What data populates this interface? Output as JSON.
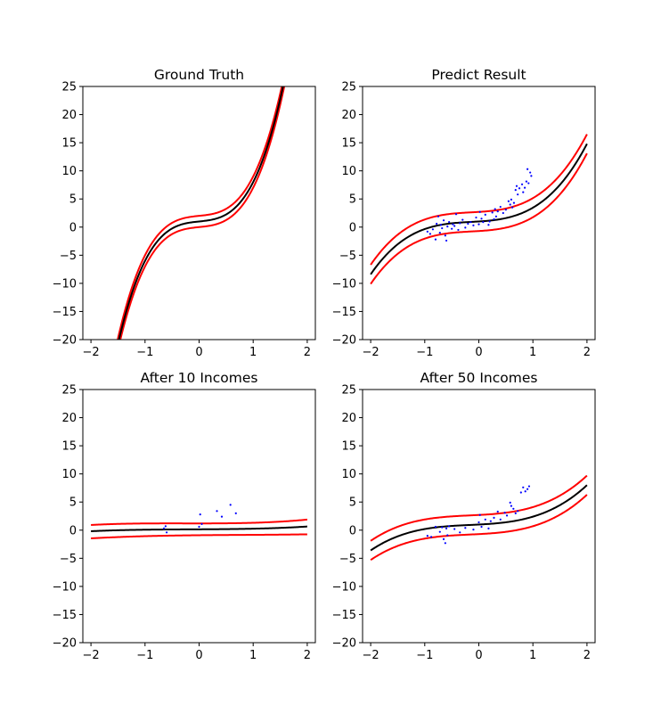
{
  "colors": {
    "mean_line": "#000000",
    "band_lines": "#ff0000",
    "points": "#0000ff",
    "background": "#ffffff"
  },
  "chart_data": [
    {
      "type": "line",
      "title": "Ground Truth",
      "xlim": [
        -2.15,
        2.15
      ],
      "ylim": [
        -20,
        25
      ],
      "xticks": [
        -2,
        -1,
        0,
        1,
        2
      ],
      "yticks": [
        -20,
        -15,
        -10,
        -5,
        0,
        5,
        10,
        15,
        20,
        25
      ],
      "grid": false,
      "legend": "none",
      "curve_model": "y = a*x^3 + b*x^2 + c*x + d, sampled over x in [-2, 2]",
      "mean_poly": [
        6.0,
        0.0,
        1.0,
        1.0
      ],
      "band_offset": 1.0,
      "points": []
    },
    {
      "type": "line",
      "title": "Predict Result",
      "xlim": [
        -2.15,
        2.15
      ],
      "ylim": [
        -20,
        25
      ],
      "xticks": [
        -2,
        -1,
        0,
        1,
        2
      ],
      "yticks": [
        -20,
        -15,
        -10,
        -5,
        0,
        5,
        10,
        15,
        20,
        25
      ],
      "grid": false,
      "legend": "none",
      "mean_poly": [
        1.3,
        0.55,
        0.6,
        1.0
      ],
      "band_offset": 1.7,
      "points": [
        [
          -0.95,
          -0.8
        ],
        [
          -0.9,
          -1.2
        ],
        [
          -0.85,
          -0.4
        ],
        [
          -0.8,
          -2.2
        ],
        [
          -0.78,
          0.6
        ],
        [
          -0.75,
          1.9
        ],
        [
          -0.72,
          -1.0
        ],
        [
          -0.7,
          0.4
        ],
        [
          -0.68,
          -0.2
        ],
        [
          -0.65,
          1.2
        ],
        [
          -0.62,
          -1.5
        ],
        [
          -0.6,
          -2.4
        ],
        [
          -0.58,
          0.1
        ],
        [
          -0.55,
          0.9
        ],
        [
          -0.5,
          -0.3
        ],
        [
          -0.48,
          0.5
        ],
        [
          -0.45,
          0.2
        ],
        [
          -0.42,
          2.3
        ],
        [
          -0.38,
          -0.5
        ],
        [
          -0.35,
          0.7
        ],
        [
          -0.3,
          1.3
        ],
        [
          -0.25,
          -0.1
        ],
        [
          -0.2,
          0.6
        ],
        [
          -0.15,
          0.9
        ],
        [
          -0.1,
          0.3
        ],
        [
          -0.05,
          1.7
        ],
        [
          0.0,
          0.5
        ],
        [
          0.02,
          2.7
        ],
        [
          0.05,
          1.5
        ],
        [
          0.08,
          0.9
        ],
        [
          0.12,
          2.2
        ],
        [
          0.18,
          0.4
        ],
        [
          0.2,
          1.0
        ],
        [
          0.25,
          2.6
        ],
        [
          0.28,
          1.4
        ],
        [
          0.3,
          3.2
        ],
        [
          0.32,
          1.9
        ],
        [
          0.35,
          2.8
        ],
        [
          0.4,
          3.6
        ],
        [
          0.45,
          2.5
        ],
        [
          0.5,
          3.1
        ],
        [
          0.55,
          4.6
        ],
        [
          0.58,
          4.0
        ],
        [
          0.6,
          4.9
        ],
        [
          0.62,
          3.5
        ],
        [
          0.65,
          4.3
        ],
        [
          0.68,
          6.6
        ],
        [
          0.7,
          7.3
        ],
        [
          0.72,
          5.8
        ],
        [
          0.75,
          6.9
        ],
        [
          0.8,
          7.6
        ],
        [
          0.82,
          6.2
        ],
        [
          0.85,
          7.0
        ],
        [
          0.88,
          8.1
        ],
        [
          0.9,
          10.3
        ],
        [
          0.92,
          7.8
        ],
        [
          0.95,
          9.7
        ],
        [
          0.97,
          9.1
        ]
      ]
    },
    {
      "type": "line",
      "title": "After 10 Incomes",
      "xlim": [
        -2.15,
        2.15
      ],
      "ylim": [
        -20,
        25
      ],
      "xticks": [
        -2,
        -1,
        0,
        1,
        2
      ],
      "yticks": [
        -20,
        -15,
        -10,
        -5,
        0,
        5,
        10,
        15,
        20,
        25
      ],
      "grid": false,
      "legend": "none",
      "mean_poly": [
        0.04,
        0.02,
        0.05,
        0.15
      ],
      "band_poly_upper": [
        0.06,
        0.05,
        0.0,
        1.2
      ],
      "band_poly_lower": [
        0.02,
        -0.05,
        0.1,
        -0.9
      ],
      "points": [
        [
          -0.65,
          0.3
        ],
        [
          -0.62,
          0.7
        ],
        [
          -0.6,
          -0.4
        ],
        [
          0.0,
          0.6
        ],
        [
          0.02,
          2.8
        ],
        [
          0.33,
          3.4
        ],
        [
          0.42,
          2.4
        ],
        [
          0.58,
          4.5
        ],
        [
          0.68,
          3.0
        ],
        [
          0.05,
          1.1
        ]
      ]
    },
    {
      "type": "line",
      "title": "After 50 Incomes",
      "xlim": [
        -2.15,
        2.15
      ],
      "ylim": [
        -20,
        25
      ],
      "xticks": [
        -2,
        -1,
        0,
        1,
        2
      ],
      "yticks": [
        -20,
        -15,
        -10,
        -5,
        0,
        5,
        10,
        15,
        20,
        25
      ],
      "grid": false,
      "legend": "none",
      "mean_poly": [
        0.6,
        0.3,
        0.5,
        1.0
      ],
      "band_offset": 1.7,
      "points": [
        [
          -0.95,
          -1.0
        ],
        [
          -0.88,
          -1.2
        ],
        [
          -0.8,
          0.6
        ],
        [
          -0.72,
          -0.3
        ],
        [
          -0.68,
          0.5
        ],
        [
          -0.65,
          -1.6
        ],
        [
          -0.62,
          -2.3
        ],
        [
          -0.6,
          0.3
        ],
        [
          -0.58,
          -0.9
        ],
        [
          -0.55,
          0.7
        ],
        [
          -0.45,
          0.2
        ],
        [
          -0.35,
          -0.4
        ],
        [
          -0.25,
          0.4
        ],
        [
          -0.1,
          0.1
        ],
        [
          0.0,
          1.4
        ],
        [
          0.02,
          2.7
        ],
        [
          0.05,
          0.6
        ],
        [
          0.12,
          1.9
        ],
        [
          0.18,
          0.3
        ],
        [
          0.22,
          1.6
        ],
        [
          0.28,
          2.2
        ],
        [
          0.35,
          3.3
        ],
        [
          0.4,
          1.9
        ],
        [
          0.48,
          3.1
        ],
        [
          0.52,
          2.6
        ],
        [
          0.58,
          4.9
        ],
        [
          0.6,
          4.3
        ],
        [
          0.64,
          3.8
        ],
        [
          0.68,
          3.0
        ],
        [
          0.72,
          3.4
        ],
        [
          0.78,
          6.7
        ],
        [
          0.82,
          7.6
        ],
        [
          0.86,
          6.9
        ],
        [
          0.9,
          7.3
        ],
        [
          0.93,
          7.8
        ]
      ]
    }
  ]
}
